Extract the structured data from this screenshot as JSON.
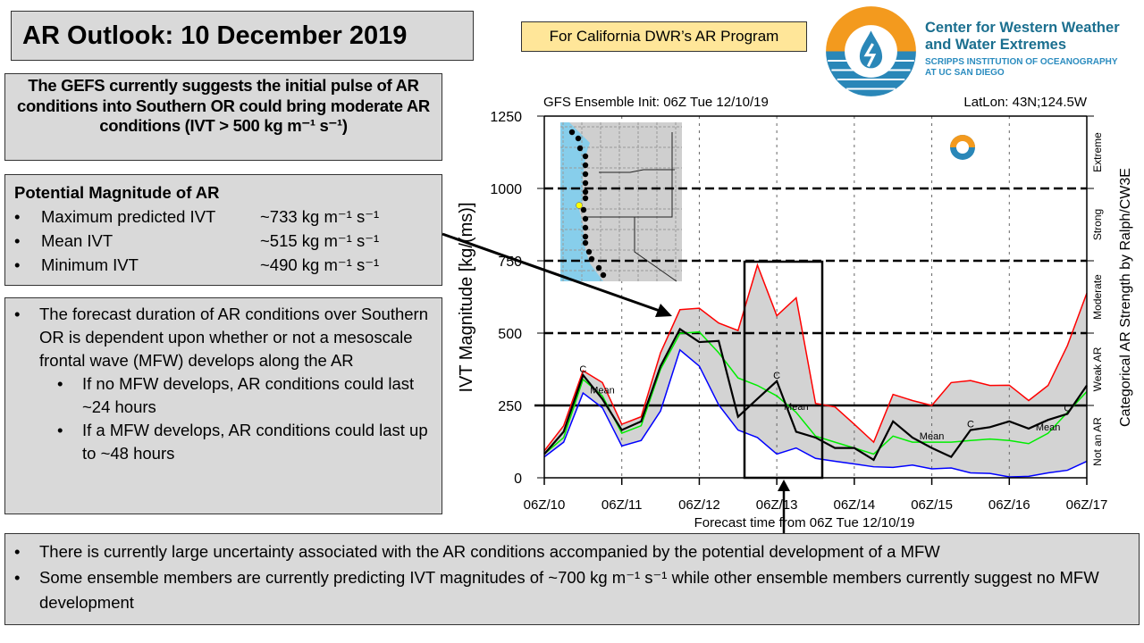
{
  "title": "AR Outlook: 10 December 2019",
  "program_tag": "For California DWR’s AR Program",
  "logo": {
    "line1": "Center for Western Weather",
    "line2": "and Water Extremes",
    "line3": "SCRIPPS INSTITUTION OF OCEANOGRAPHY",
    "line4": "AT UC SAN DIEGO",
    "colors": {
      "orange": "#f39a1e",
      "blue": "#2a87b8"
    }
  },
  "summary": "The GEFS currently suggests the initial pulse of AR conditions into Southern OR could bring moderate AR conditions (IVT > 500 kg m⁻¹ s⁻¹)",
  "magnitude": {
    "heading": "Potential Magnitude of AR",
    "rows": [
      {
        "label": "Maximum predicted IVT",
        "value": "~733 kg m⁻¹ s⁻¹"
      },
      {
        "label": "Mean IVT",
        "value": "~515 kg m⁻¹ s⁻¹"
      },
      {
        "label": "Minimum IVT",
        "value": "~490 kg m⁻¹ s⁻¹"
      }
    ]
  },
  "duration": {
    "main": "The forecast duration of AR conditions over Southern OR is dependent upon whether or not a mesoscale frontal wave (MFW) develops along the AR",
    "subs": [
      "If no MFW develops, AR conditions could last ~24 hours",
      "If a MFW develops, AR conditions could last up to ~48 hours"
    ]
  },
  "bottom": [
    "There is currently large uncertainty associated with the AR conditions accompanied by the potential development of a MFW",
    "Some ensemble members are currently predicting IVT magnitudes of ~700 kg m⁻¹ s⁻¹ while other ensemble members currently suggest no MFW development"
  ],
  "chart_data": {
    "type": "line",
    "title": "GFS Ensemble Init: 06Z Tue 12/10/19",
    "location": "LatLon: 43N;124.5W",
    "xlabel": "Forecast time from 06Z Tue 12/10/19",
    "ylabel": "IVT Magnitude [kg/(ms)]",
    "right_label": "Categorical AR Strength by Ralph/CW3E",
    "ylim": [
      0,
      1250
    ],
    "yticks": [
      "0",
      "250",
      "500",
      "750",
      "1000",
      "1250"
    ],
    "xticks": [
      "06Z/10",
      "06Z/11",
      "06Z/12",
      "06Z/13",
      "06Z/14",
      "06Z/15",
      "06Z/16",
      "06Z/17"
    ],
    "categories": [
      {
        "label": "Not an AR",
        "from": 0,
        "to": 250
      },
      {
        "label": "Weak AR",
        "from": 250,
        "to": 500
      },
      {
        "label": "Moderate",
        "from": 500,
        "to": 750
      },
      {
        "label": "Strong",
        "from": 750,
        "to": 1000
      },
      {
        "label": "Extreme",
        "from": 1000,
        "to": 1250
      }
    ],
    "x": [
      "10/06Z",
      "10/12Z",
      "10/18Z",
      "11/00Z",
      "11/06Z",
      "11/12Z",
      "11/18Z",
      "12/00Z",
      "12/06Z",
      "12/12Z",
      "12/18Z",
      "13/00Z",
      "13/06Z",
      "13/12Z",
      "13/18Z",
      "14/00Z",
      "14/06Z",
      "14/12Z",
      "14/18Z",
      "15/00Z",
      "15/06Z",
      "15/12Z",
      "15/18Z",
      "16/00Z",
      "16/06Z",
      "16/12Z",
      "16/18Z",
      "17/00Z",
      "17/06Z"
    ],
    "series": [
      {
        "key": "max",
        "color": "#ff0000",
        "values": [
          93,
          180,
          370,
          329,
          185,
          211,
          432,
          581,
          586,
          535,
          509,
          735,
          560,
          622,
          257,
          245,
          185,
          123,
          288,
          267,
          250,
          329,
          336,
          319,
          320,
          267,
          319,
          457,
          638
        ]
      },
      {
        "key": "min",
        "color": "#0000ff",
        "values": [
          72,
          123,
          293,
          242,
          110,
          129,
          231,
          442,
          386,
          252,
          165,
          139,
          82,
          103,
          67,
          57,
          48,
          38,
          36,
          44,
          31,
          34,
          17,
          15,
          3,
          5,
          17,
          26,
          57
        ]
      },
      {
        "name": "Mean",
        "color": "#00ee00",
        "values": [
          82,
          139,
          340,
          283,
          154,
          180,
          375,
          499,
          504,
          432,
          345,
          319,
          283,
          226,
          144,
          123,
          103,
          82,
          144,
          123,
          123,
          123,
          129,
          134,
          129,
          118,
          154,
          226,
          298
        ]
      },
      {
        "name": "C",
        "color": "#000000",
        "values": [
          82,
          159,
          355,
          272,
          165,
          195,
          386,
          514,
          469,
          473,
          211,
          273,
          334,
          159,
          139,
          103,
          103,
          62,
          195,
          139,
          103,
          72,
          165,
          175,
          195,
          170,
          200,
          221,
          319
        ]
      }
    ],
    "spread_color": "#d3d3d3",
    "thresholds": [
      {
        "value": 250,
        "style": "solid"
      },
      {
        "value": 500,
        "style": "dashed"
      },
      {
        "value": 750,
        "style": "dashed"
      },
      {
        "value": 1000,
        "style": "dashed"
      }
    ],
    "grid": "vertical dotted"
  }
}
